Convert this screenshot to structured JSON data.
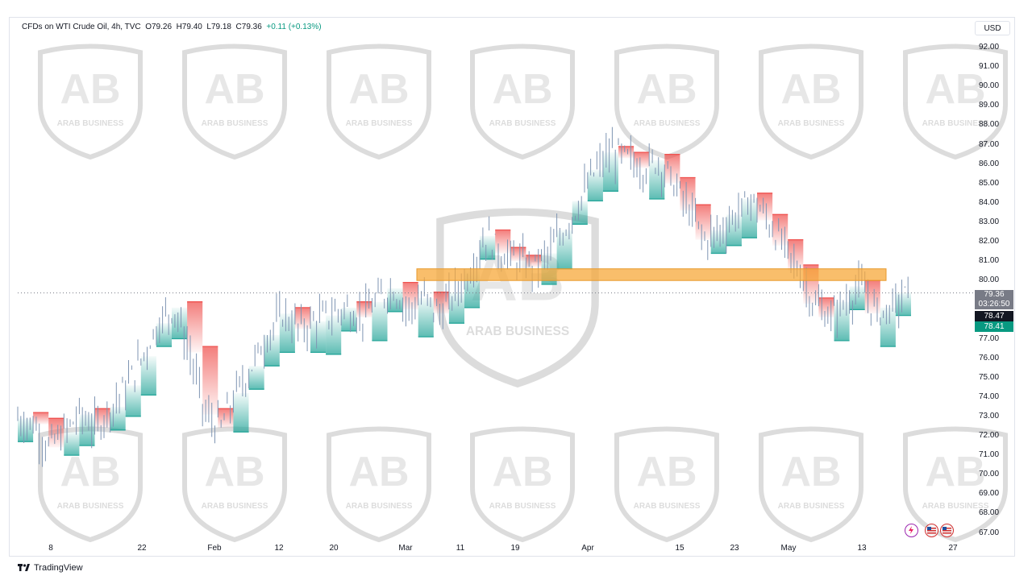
{
  "header": {
    "symbol": "CFDs on WTI Crude Oil, 4h, TVC",
    "open": "O79.26",
    "high": "H79.40",
    "low": "L79.18",
    "close": "C79.36",
    "change": "+0.11 (+0.13%)"
  },
  "currency_label": "USD",
  "price_tags": {
    "last_price": "79.36",
    "countdown": "03:26:50",
    "tag_black": "78.47",
    "tag_green": "78.41"
  },
  "footer": {
    "brand": "TradingView"
  },
  "watermark_text": "ARAB BUSINESS",
  "colors": {
    "bullish_fill": "#26a69a",
    "bearish_fill": "#ef5350",
    "candles": "#7f95b3",
    "zone": "#f7a83a",
    "tag_black": "#131722",
    "tag_green": "#089981",
    "tag_gray": "#787b86"
  },
  "chart_data": {
    "type": "line",
    "series": [
      {
        "values": [
          72.9,
          72.6,
          71.4,
          72.2,
          73.1,
          72.4,
          73.5,
          74.6,
          76.1,
          77.8,
          78.6,
          76.3,
          73.1,
          72.4,
          74.2,
          75.6,
          77.2,
          78.3,
          77.5,
          77.9,
          78.2,
          78.6,
          78.1,
          78.9,
          79.6,
          78.5,
          79.1,
          78.3,
          79.4,
          80.6,
          82.3,
          81.4,
          81.0,
          80.7,
          81.4,
          82.6,
          84.1,
          85.7,
          86.6,
          86.3,
          85.8,
          86.2,
          85.0,
          83.6,
          82.1,
          82.6,
          83.4,
          84.2,
          83.1,
          81.8,
          80.5,
          78.8,
          78.1,
          78.9,
          79.7,
          78.3,
          78.6,
          79.4
        ]
      }
    ],
    "ylim": [
      67,
      92
    ],
    "y_ticks": [
      "92.00",
      "91.00",
      "90.00",
      "89.00",
      "88.00",
      "87.00",
      "86.00",
      "85.00",
      "84.00",
      "83.00",
      "82.00",
      "81.00",
      "80.00",
      "79.00",
      "78.00",
      "77.00",
      "76.00",
      "75.00",
      "74.00",
      "73.00",
      "72.00",
      "71.00",
      "70.00",
      "69.00",
      "68.00",
      "67.00"
    ],
    "x_ticks": [
      "8",
      "22",
      "Feb",
      "12",
      "20",
      "Mar",
      "11",
      "19",
      "Apr",
      "15",
      "23",
      "May",
      "13",
      "27"
    ],
    "zone": {
      "low": 80.0,
      "high": 80.6
    },
    "last_price": 79.36,
    "grid": false
  }
}
